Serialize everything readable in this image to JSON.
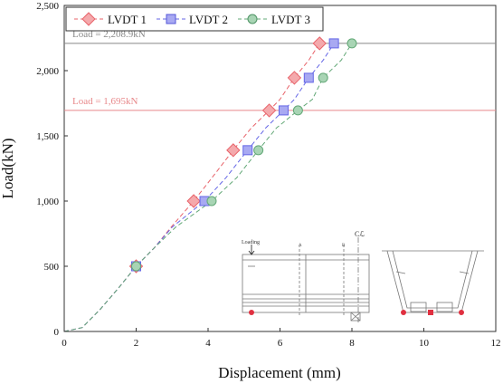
{
  "chart_data": {
    "type": "line",
    "xlabel": "Displacement (mm)",
    "ylabel": "Load(kN)",
    "xlim": [
      0,
      12
    ],
    "ylim": [
      0,
      2500
    ],
    "x_ticks": [
      "0",
      "2",
      "4",
      "6",
      "8",
      "10",
      "12"
    ],
    "y_ticks": [
      "0",
      "500",
      "1,000",
      "1,500",
      "2,000",
      "2,500"
    ],
    "grid": false,
    "legend_position": "top-left",
    "series": [
      {
        "name": "LVDT 1",
        "color": "#e8636a",
        "marker": "diamond",
        "points": [
          [
            0,
            0
          ],
          [
            0.5,
            30
          ],
          [
            1.0,
            170
          ],
          [
            1.5,
            330
          ],
          [
            2.0,
            500
          ],
          [
            2.5,
            640
          ],
          [
            3.0,
            810
          ],
          [
            3.6,
            1000
          ],
          [
            4.0,
            1140
          ],
          [
            4.7,
            1390
          ],
          [
            5.2,
            1560
          ],
          [
            5.7,
            1695
          ],
          [
            6.0,
            1780
          ],
          [
            6.4,
            1945
          ],
          [
            6.8,
            2080
          ],
          [
            7.1,
            2209
          ]
        ],
        "markers": [
          [
            2.0,
            500
          ],
          [
            3.6,
            1000
          ],
          [
            4.7,
            1390
          ],
          [
            5.7,
            1695
          ],
          [
            6.4,
            1945
          ],
          [
            7.1,
            2209
          ]
        ]
      },
      {
        "name": "LVDT 2",
        "color": "#6466e6",
        "marker": "square",
        "points": [
          [
            0,
            0
          ],
          [
            0.5,
            30
          ],
          [
            1.0,
            170
          ],
          [
            1.5,
            330
          ],
          [
            2.0,
            500
          ],
          [
            2.5,
            640
          ],
          [
            3.0,
            800
          ],
          [
            3.9,
            1000
          ],
          [
            4.5,
            1180
          ],
          [
            5.1,
            1390
          ],
          [
            5.6,
            1560
          ],
          [
            6.1,
            1695
          ],
          [
            6.4,
            1780
          ],
          [
            6.8,
            1945
          ],
          [
            7.2,
            2080
          ],
          [
            7.5,
            2209
          ]
        ],
        "markers": [
          [
            2.0,
            500
          ],
          [
            3.9,
            1000
          ],
          [
            5.1,
            1390
          ],
          [
            6.1,
            1695
          ],
          [
            6.8,
            1945
          ],
          [
            7.5,
            2209
          ]
        ]
      },
      {
        "name": "LVDT 3",
        "color": "#63a877",
        "marker": "circle",
        "points": [
          [
            0,
            0
          ],
          [
            0.5,
            30
          ],
          [
            1.0,
            170
          ],
          [
            1.5,
            330
          ],
          [
            2.0,
            500
          ],
          [
            2.5,
            640
          ],
          [
            3.1,
            800
          ],
          [
            4.1,
            1000
          ],
          [
            4.8,
            1180
          ],
          [
            5.4,
            1390
          ],
          [
            5.9,
            1560
          ],
          [
            6.5,
            1695
          ],
          [
            6.9,
            1780
          ],
          [
            7.2,
            1945
          ],
          [
            7.7,
            2080
          ],
          [
            8.0,
            2209
          ]
        ],
        "markers": [
          [
            2.0,
            500
          ],
          [
            4.1,
            1000
          ],
          [
            5.4,
            1390
          ],
          [
            6.5,
            1695
          ],
          [
            7.2,
            1945
          ],
          [
            8.0,
            2209
          ]
        ]
      }
    ],
    "reference_lines": [
      {
        "y": 2208.9,
        "label": "Load = 2,208.9kN",
        "color": "#888888"
      },
      {
        "y": 1695,
        "label": "Load = 1,695kN",
        "color": "#e8888a"
      }
    ],
    "inset": {
      "loading_label": "Loading",
      "section_a": "A",
      "section_b": "B",
      "centerline": "Cℒ"
    }
  }
}
